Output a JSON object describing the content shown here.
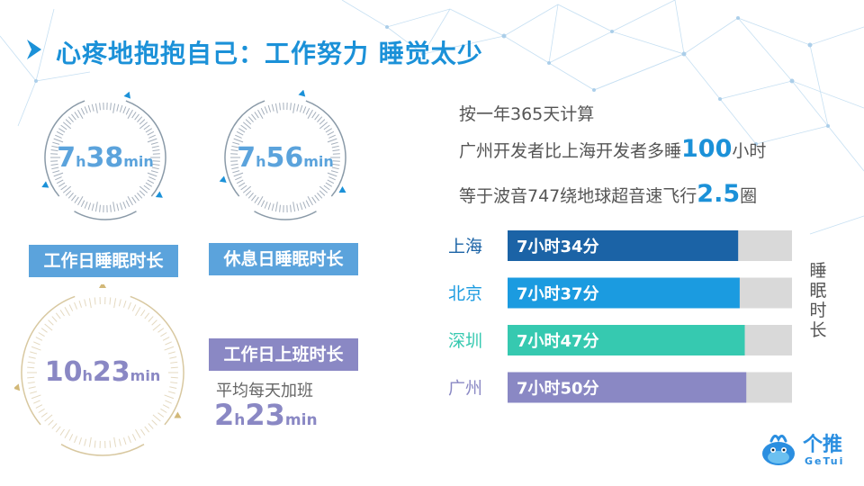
{
  "title": "心疼地抱抱自己：工作努力 睡觉太少",
  "dials": {
    "workday_sleep": {
      "hours": "7",
      "h_unit": "h",
      "minutes": "38",
      "m_unit": "min",
      "label": "工作日睡眠时长",
      "color": "#5ba3dc"
    },
    "restday_sleep": {
      "hours": "7",
      "h_unit": "h",
      "minutes": "56",
      "m_unit": "min",
      "label": "休息日睡眠时长",
      "color": "#5ba3dc"
    },
    "workday_work": {
      "hours": "10",
      "h_unit": "h",
      "minutes": "23",
      "m_unit": "min",
      "label": "工作日上班时长",
      "color": "#8a88c4"
    }
  },
  "overtime": {
    "text": "平均每天加班",
    "hours": "2",
    "h_unit": "h",
    "minutes": "23",
    "m_unit": "min"
  },
  "stats": {
    "line1": "按一年365天计算",
    "line2_pre": "广州开发者比上海开发者多睡",
    "line2_value": "100",
    "line2_post": "小时",
    "line3_pre": "等于波音747绕地球超音速飞行",
    "line3_value": "2.5",
    "line3_post": "圈"
  },
  "chart_data": {
    "type": "bar",
    "orientation": "horizontal",
    "ylabel": "睡眠时长",
    "categories": [
      "上海",
      "北京",
      "深圳",
      "广州"
    ],
    "values": [
      454,
      457,
      467,
      470
    ],
    "value_labels": [
      "7小时34分",
      "7小时37分",
      "7小时47分",
      "7小时50分"
    ],
    "colors": [
      "#1b63a6",
      "#1b9be0",
      "#36c9b0",
      "#8a88c4"
    ],
    "track_color": "#d9d9d9",
    "xlim": [
      0,
      560
    ]
  },
  "logo": {
    "cn": "个推",
    "en": "GeTui"
  }
}
